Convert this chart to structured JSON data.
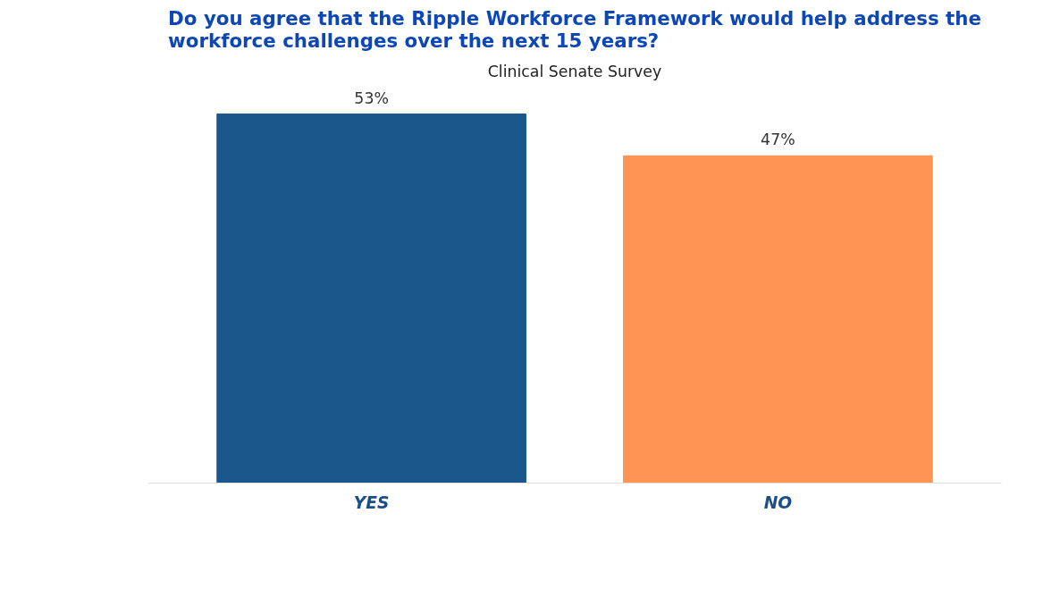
{
  "chart_data": {
    "type": "bar",
    "title": "Do you agree that the Ripple Workforce Framework would help address the\nworkforce challenges over the next 15 years?",
    "subtitle": "Clinical Senate Survey",
    "categories": [
      "YES",
      "NO"
    ],
    "values": [
      53,
      47
    ],
    "colors": [
      "#1b578b",
      "#ff9454"
    ],
    "value_labels": [
      "53%",
      "47%"
    ],
    "grid": false,
    "tick_labels": "x"
  }
}
